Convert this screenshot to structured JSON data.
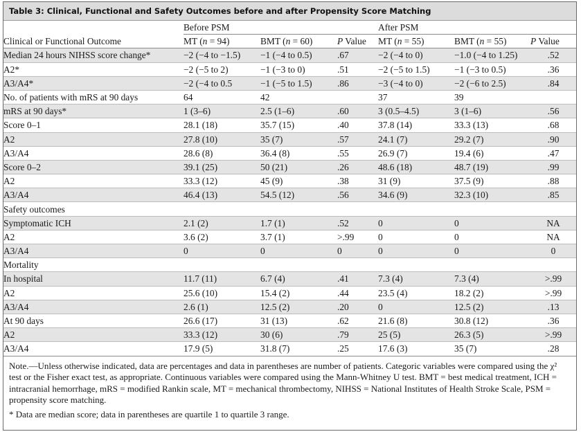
{
  "table": {
    "title": "Table 3: Clinical, Functional and Safety Outcomes before and after Propensity Score Matching",
    "group_headers": {
      "before": "Before PSM",
      "after": "After PSM"
    },
    "columns": {
      "outcome": "Clinical or Functional Outcome",
      "mt_before": "MT (n = 94)",
      "bmt_before": "BMT (n = 60)",
      "p_before": "P Value",
      "mt_after": "MT (n = 55)",
      "bmt_after": "BMT (n = 55)",
      "p_after": "P Value"
    },
    "rows": [
      {
        "label": "Median 24 hours NIHSS score change*",
        "indent": 0,
        "mt_b": "−2 (−4 to −1.5)",
        "bmt_b": "−1 (−4 to 0.5)",
        "p_b": ".67",
        "mt_a": "−2 (−4 to 0)",
        "bmt_a": "−1.0 (−4 to 1.25)",
        "p_a": ".52"
      },
      {
        "label": "A2*",
        "indent": 1,
        "mt_b": "−2 (−5 to 2)",
        "bmt_b": "−1 (−3 to 0)",
        "p_b": ".51",
        "mt_a": "−2 (−5 to 1.5)",
        "bmt_a": "−1 (−3 to 0.5)",
        "p_a": ".36"
      },
      {
        "label": "A3/A4*",
        "indent": 1,
        "mt_b": "−2 (−4 to 0.5",
        "bmt_b": "−1 (−5 to 1.5)",
        "p_b": ".86",
        "mt_a": "−3 (−4 to 0)",
        "bmt_a": "−2 (−6 to 2.5)",
        "p_a": ".84"
      },
      {
        "label": "No. of patients with mRS at 90 days",
        "indent": 0,
        "mt_b": "64",
        "bmt_b": "42",
        "p_b": "",
        "mt_a": "37",
        "bmt_a": "39",
        "p_a": ""
      },
      {
        "label": "mRS at 90 days*",
        "indent": 0,
        "mt_b": "1 (3–6)",
        "bmt_b": "2.5 (1–6)",
        "p_b": ".60",
        "mt_a": "3 (0.5–4.5)",
        "bmt_a": "3 (1–6)",
        "p_a": ".56"
      },
      {
        "label": "Score 0–1",
        "indent": 1,
        "mt_b": "28.1 (18)",
        "bmt_b": "35.7 (15)",
        "p_b": ".40",
        "mt_a": "37.8 (14)",
        "bmt_a": "33.3 (13)",
        "p_a": ".68"
      },
      {
        "label": "A2",
        "indent": 2,
        "mt_b": "27.8 (10)",
        "bmt_b": "35 (7)",
        "p_b": ".57",
        "mt_a": "24.1 (7)",
        "bmt_a": "29.2 (7)",
        "p_a": ".90"
      },
      {
        "label": "A3/A4",
        "indent": 2,
        "mt_b": "28.6 (8)",
        "bmt_b": "36.4 (8)",
        "p_b": ".55",
        "mt_a": "26.9 (7)",
        "bmt_a": "19.4 (6)",
        "p_a": ".47"
      },
      {
        "label": "Score 0–2",
        "indent": 1,
        "mt_b": "39.1 (25)",
        "bmt_b": "50 (21)",
        "p_b": ".26",
        "mt_a": "48.6 (18)",
        "bmt_a": "48.7 (19)",
        "p_a": ".99"
      },
      {
        "label": "A2",
        "indent": 2,
        "mt_b": "33.3 (12)",
        "bmt_b": "45 (9)",
        "p_b": ".38",
        "mt_a": "31 (9)",
        "bmt_a": "37.5 (9)",
        "p_a": ".88"
      },
      {
        "label": "A3/A4",
        "indent": 2,
        "mt_b": "46.4 (13)",
        "bmt_b": "54.5 (12)",
        "p_b": ".56",
        "mt_a": "34.6 (9)",
        "bmt_a": "32.3 (10)",
        "p_a": ".85"
      },
      {
        "label": "Safety outcomes",
        "indent": 0,
        "mt_b": "",
        "bmt_b": "",
        "p_b": "",
        "mt_a": "",
        "bmt_a": "",
        "p_a": ""
      },
      {
        "label": "Symptomatic ICH",
        "indent": 1,
        "mt_b": "2.1 (2)",
        "bmt_b": "1.7 (1)",
        "p_b": ".52",
        "mt_a": "0",
        "bmt_a": "0",
        "p_a": "NA"
      },
      {
        "label": "A2",
        "indent": 2,
        "mt_b": "3.6 (2)",
        "bmt_b": "3.7 (1)",
        "p_b": ">.99",
        "mt_a": "0",
        "bmt_a": "0",
        "p_a": "NA"
      },
      {
        "label": "A3/A4",
        "indent": 2,
        "mt_b": "0",
        "bmt_b": "0",
        "p_b": "0",
        "mt_a": "0",
        "bmt_a": "0",
        "p_a": "0"
      },
      {
        "label": "Mortality",
        "indent": 0,
        "mt_b": "",
        "bmt_b": "",
        "p_b": "",
        "mt_a": "",
        "bmt_a": "",
        "p_a": ""
      },
      {
        "label": "In hospital",
        "indent": 1,
        "mt_b": "11.7 (11)",
        "bmt_b": "6.7 (4)",
        "p_b": ".41",
        "mt_a": "7.3 (4)",
        "bmt_a": "7.3 (4)",
        "p_a": ">.99"
      },
      {
        "label": "A2",
        "indent": 2,
        "mt_b": "25.6 (10)",
        "bmt_b": "15.4 (2)",
        "p_b": ".44",
        "mt_a": "23.5 (4)",
        "bmt_a": "18.2 (2)",
        "p_a": ">.99"
      },
      {
        "label": "A3/A4",
        "indent": 2,
        "mt_b": "2.6 (1)",
        "bmt_b": "12.5 (2)",
        "p_b": ".20",
        "mt_a": "0",
        "bmt_a": "12.5 (2)",
        "p_a": ".13"
      },
      {
        "label": "At 90 days",
        "indent": 2,
        "mt_b": "26.6 (17)",
        "bmt_b": "31 (13)",
        "p_b": ".62",
        "mt_a": "21.6 (8)",
        "bmt_a": "30.8 (12)",
        "p_a": ".36"
      },
      {
        "label": "A2",
        "indent": 2,
        "mt_b": "33.3 (12)",
        "bmt_b": "30 (6)",
        "p_b": ".79",
        "mt_a": "25 (5)",
        "bmt_a": "26.3 (5)",
        "p_a": ">.99"
      },
      {
        "label": "A3/A4",
        "indent": 2,
        "mt_b": "17.9 (5)",
        "bmt_b": "31.8 (7)",
        "p_b": ".25",
        "mt_a": "17.6 (3)",
        "bmt_a": "35 (7)",
        "p_a": ".28"
      }
    ],
    "note": "Note.—Unless otherwise indicated, data are percentages and data in parentheses are number of patients. Categoric variables were compared using the χ² test or the Fisher exact test, as appropriate. Continuous variables were compared using the Mann-Whitney U test. BMT = best medical treatment, ICH = intracranial hemorrhage, mRS = modified Rankin scale, MT = mechanical thrombectomy, NIHSS = National Institutes of Health Stroke Scale, PSM = propensity score matching.",
    "footnote": "* Data are median score; data in parentheses are quartile 1 to quartile 3 range."
  }
}
